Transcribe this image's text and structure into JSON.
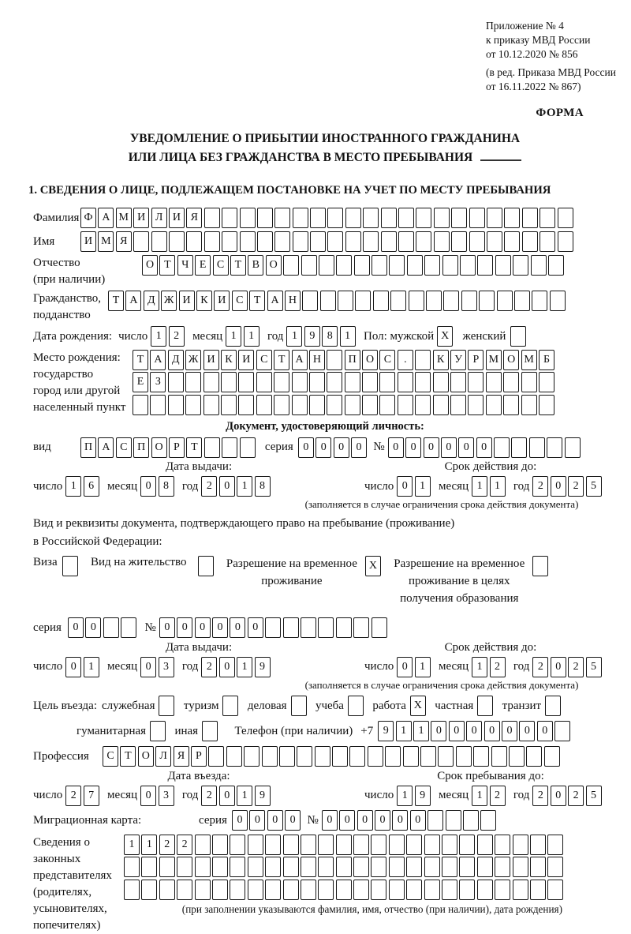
{
  "meta": {
    "appendix_lines": [
      "Приложение № 4",
      "к приказу МВД России",
      "от 10.12.2020 № 856"
    ],
    "amendment_lines": [
      "(в ред. Приказа МВД России",
      "от 16.11.2022 № 867)"
    ],
    "form_label": "ФОРМА"
  },
  "title": {
    "line1": "УВЕДОМЛЕНИЕ О ПРИБЫТИИ ИНОСТРАННОГО ГРАЖДАНИНА",
    "line2": "ИЛИ ЛИЦА БЕЗ ГРАЖДАНСТВА В МЕСТО ПРЕБЫВАНИЯ"
  },
  "section1_heading": "1. СВЕДЕНИЯ О ЛИЦЕ, ПОДЛЕЖАЩЕМ ПОСТАНОВКЕ НА УЧЕТ ПО МЕСТУ ПРЕБЫВАНИЯ",
  "labels": {
    "day": "число",
    "month": "месяц",
    "year": "год",
    "seriya": "серия",
    "number_sign": "№",
    "issue_date": "Дата выдачи:",
    "valid_until": "Срок действия до:",
    "restriction_note": "(заполняется в случае ограничения срока действия документа)",
    "entry_date": "Дата въезда:",
    "stay_until": "Срок пребывания до:"
  },
  "surname": {
    "label": "Фамилия",
    "cells": {
      "value": "ФАМИЛИЯ",
      "length": 28
    }
  },
  "name": {
    "label": "Имя",
    "cells": {
      "value": "ИМЯ",
      "length": 28
    }
  },
  "patronymic": {
    "label": "Отчество",
    "label2": "(при наличии)",
    "cells": {
      "value": "ОТЧЕСТВО",
      "length": 24
    }
  },
  "citizenship": {
    "label": "Гражданство,",
    "label2": "подданство",
    "cells": {
      "value": "ТАДЖИКИСТАН",
      "length": 26
    }
  },
  "birth_date": {
    "label": "Дата рождения:",
    "day": {
      "value": "12",
      "length": 2
    },
    "month": {
      "value": "11",
      "length": 2
    },
    "year": {
      "value": "1981",
      "length": 4
    }
  },
  "sex": {
    "label_male": "Пол: мужской",
    "male_box": {
      "value": "X",
      "length": 1
    },
    "label_female": "женский",
    "female_box": {
      "value": "",
      "length": 1
    }
  },
  "birth_place": {
    "label_lines": [
      "Место рождения:",
      "государство",
      "город или другой",
      "населенный пункт"
    ],
    "row1": {
      "value": "ТАДЖИКИСТАН ПОС. КУРМОМБ",
      "length": 24
    },
    "row2": {
      "value": "ЕЗ",
      "length": 24
    },
    "row3": {
      "value": "",
      "length": 24
    }
  },
  "identity_doc": {
    "heading": "Документ, удостоверяющий личность:",
    "vid_label": "вид",
    "vid": {
      "value": "ПАСПОРТ",
      "length": 10
    },
    "seriya": {
      "value": "0000",
      "length": 4
    },
    "number": {
      "value": "000000",
      "length": 11
    },
    "issue": {
      "day": {
        "value": "16",
        "length": 2
      },
      "month": {
        "value": "08",
        "length": 2
      },
      "year": {
        "value": "2018",
        "length": 4
      }
    },
    "valid": {
      "day": {
        "value": "01",
        "length": 2
      },
      "month": {
        "value": "11",
        "length": 2
      },
      "year": {
        "value": "2025",
        "length": 4
      }
    }
  },
  "residence_doc": {
    "line1": "Вид и реквизиты документа, подтверждающего право на пребывание (проживание)",
    "line2": "в Российской Федерации:",
    "visa_label": "Виза",
    "visa_box": {
      "value": "",
      "length": 1
    },
    "permit_label": "Вид на жительство",
    "permit_box": {
      "value": "",
      "length": 1
    },
    "temp_lines": [
      "Разрешение на временное",
      "проживание"
    ],
    "temp_box": {
      "value": "X",
      "length": 1
    },
    "edu_lines": [
      "Разрешение на временное",
      "проживание в целях",
      "получения образования"
    ],
    "edu_box": {
      "value": "",
      "length": 1
    },
    "seriya": {
      "value": "00",
      "length": 4
    },
    "number": {
      "value": "000000",
      "length": 13
    },
    "issue": {
      "day": {
        "value": "01",
        "length": 2
      },
      "month": {
        "value": "03",
        "length": 2
      },
      "year": {
        "value": "2019",
        "length": 4
      }
    },
    "valid": {
      "day": {
        "value": "01",
        "length": 2
      },
      "month": {
        "value": "12",
        "length": 2
      },
      "year": {
        "value": "2025",
        "length": 4
      }
    }
  },
  "purpose": {
    "label": "Цель въезда:",
    "options": {
      "sluzhebnaya": {
        "label": "служебная",
        "box": {
          "value": "",
          "length": 1
        }
      },
      "turizm": {
        "label": "туризм",
        "box": {
          "value": "",
          "length": 1
        }
      },
      "delovaya": {
        "label": "деловая",
        "box": {
          "value": "",
          "length": 1
        }
      },
      "ucheba": {
        "label": "учеба",
        "box": {
          "value": "",
          "length": 1
        }
      },
      "rabota": {
        "label": "работа",
        "box": {
          "value": "X",
          "length": 1
        }
      },
      "chastnaya": {
        "label": "частная",
        "box": {
          "value": "",
          "length": 1
        }
      },
      "tranzit": {
        "label": "транзит",
        "box": {
          "value": "",
          "length": 1
        }
      },
      "gumanitarnaya": {
        "label": "гуманитарная",
        "box": {
          "value": "",
          "length": 1
        }
      },
      "inaya": {
        "label": "иная",
        "box": {
          "value": "",
          "length": 1
        }
      }
    }
  },
  "phone": {
    "label": "Телефон (при наличии)",
    "prefix": "+7",
    "cells": {
      "value": "9110000000",
      "length": 11
    }
  },
  "profession": {
    "label": "Профессия",
    "cells": {
      "value": "СТОЛЯР",
      "length": 26
    }
  },
  "entry": {
    "date": {
      "day": {
        "value": "27",
        "length": 2
      },
      "month": {
        "value": "03",
        "length": 2
      },
      "year": {
        "value": "2019",
        "length": 4
      }
    },
    "stay": {
      "day": {
        "value": "19",
        "length": 2
      },
      "month": {
        "value": "12",
        "length": 2
      },
      "year": {
        "value": "2025",
        "length": 4
      }
    }
  },
  "migration_card": {
    "label": "Миграционная карта:",
    "seriya": {
      "value": "0000",
      "length": 4
    },
    "number": {
      "value": "000000",
      "length": 10
    }
  },
  "legal_reps": {
    "label_lines": [
      "Сведения о",
      "законных",
      "представителях",
      "(родителях,",
      "усыновителях,",
      "попечителях)"
    ],
    "row1": {
      "value": "1122",
      "length": 25
    },
    "row2": {
      "value": "",
      "length": 25
    },
    "row3": {
      "value": "",
      "length": 25
    },
    "note": "(при заполнении указываются фамилия, имя, отчество (при наличии), дата рождения)"
  }
}
